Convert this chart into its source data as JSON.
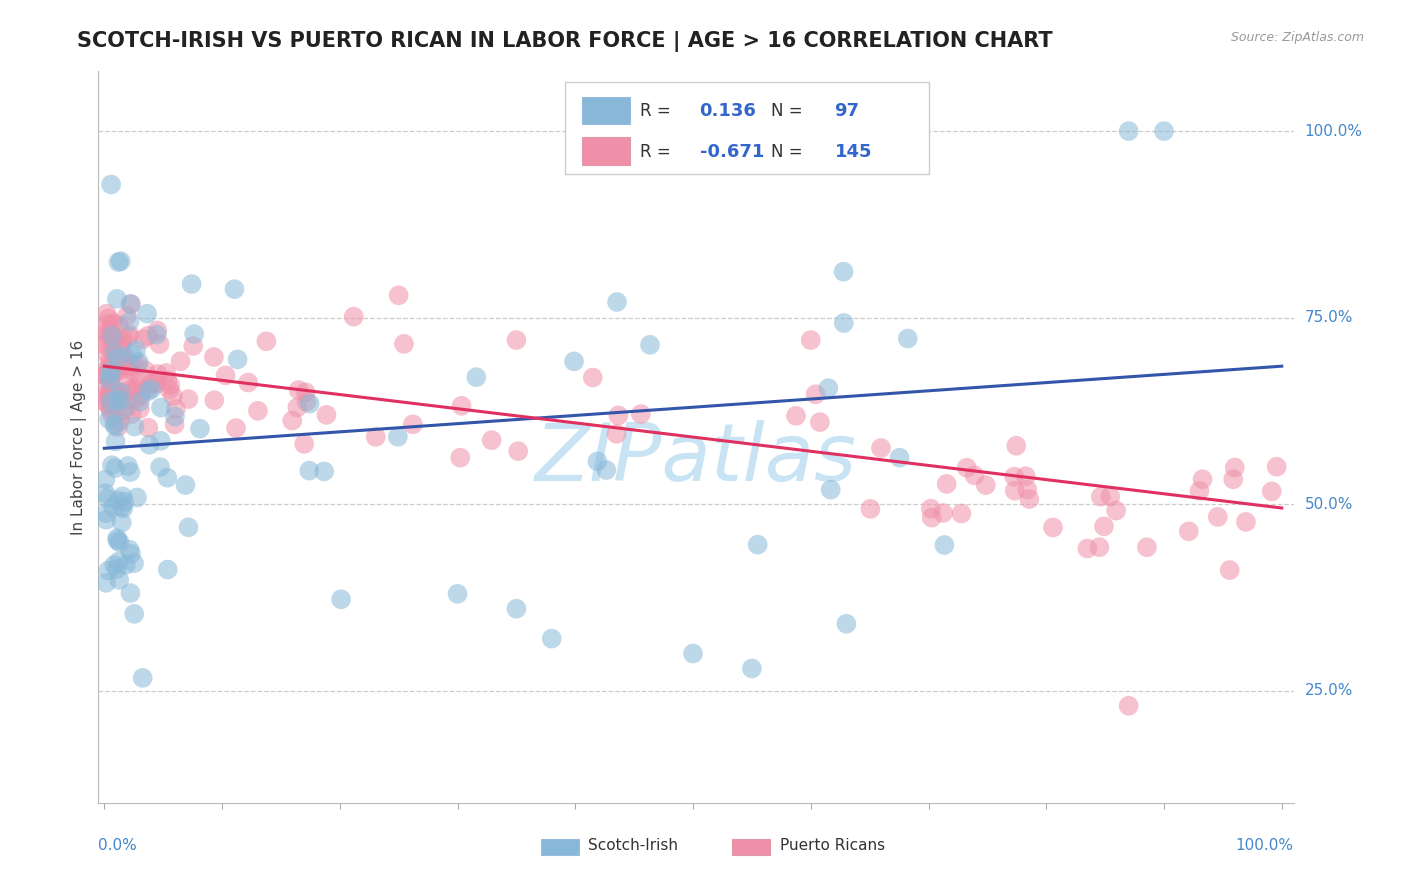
{
  "title": "SCOTCH-IRISH VS PUERTO RICAN IN LABOR FORCE | AGE > 16 CORRELATION CHART",
  "source": "Source: ZipAtlas.com",
  "ylabel": "In Labor Force | Age > 16",
  "scotch_irish_color": "#88b8d8",
  "scotch_irish_edge": "#6699bb",
  "puerto_rican_color": "#f090a8",
  "puerto_rican_edge": "#d06878",
  "trend_blue_color": "#3355aa",
  "trend_pink_color": "#e03060",
  "watermark_color": "#c8e4f4",
  "ytick_vals": [
    0.25,
    0.5,
    0.75,
    1.0
  ],
  "ytick_labels": [
    "25.0%",
    "50.0%",
    "75.0%",
    "100.0%"
  ],
  "xlim": [
    -0.005,
    1.01
  ],
  "ylim": [
    0.1,
    1.08
  ],
  "blue_trend_start": 0.575,
  "blue_trend_end": 0.685,
  "pink_trend_start": 0.685,
  "pink_trend_end": 0.495,
  "legend_R1": "0.136",
  "legend_N1": "97",
  "legend_R2": "-0.671",
  "legend_N2": "145"
}
